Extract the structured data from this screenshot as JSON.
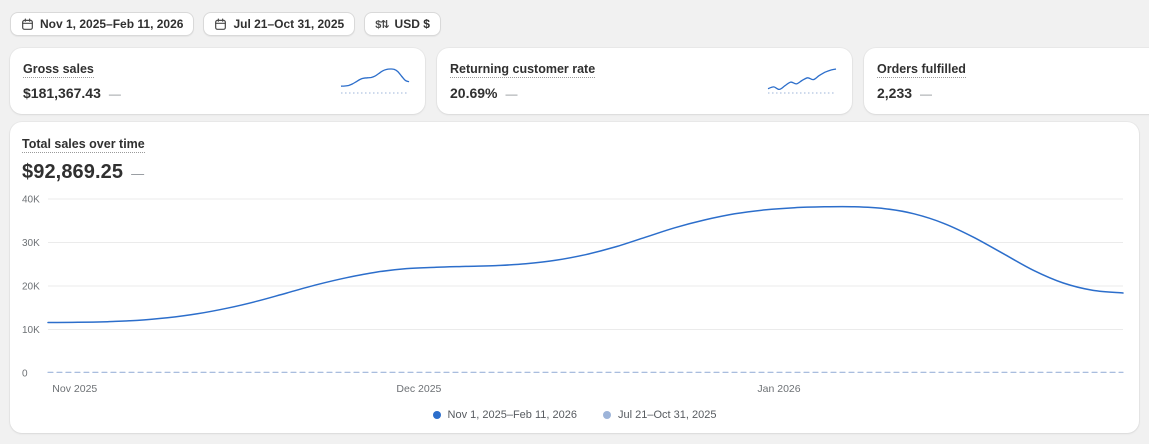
{
  "toolbar": {
    "date_range": "Nov 1, 2025–Feb 11, 2026",
    "compare_range": "Jul 21–Oct 31, 2025",
    "currency": "USD $"
  },
  "colors": {
    "primary": "#2c6ecb",
    "comparison": "#9db4d9",
    "grid": "#ebebeb",
    "axis_text": "#6d7175"
  },
  "metrics": [
    {
      "title": "Gross sales",
      "value": "$181,367.43",
      "delta": "—",
      "spark": [
        11.6,
        11.8,
        12.7,
        14.9,
        18.4,
        21.9,
        24,
        24.5,
        25.1,
        27.2,
        31.2,
        35.2,
        37.5,
        38.2,
        37.8,
        34.4,
        27.4,
        20.7,
        18.4
      ],
      "spark_compare": [
        1,
        1,
        1,
        1,
        1,
        1,
        1,
        1,
        1,
        1
      ]
    },
    {
      "title": "Returning customer rate",
      "value": "20.69%",
      "delta": "—",
      "spark": [
        14.2,
        14.8,
        14.0,
        15.2,
        16.4,
        15.8,
        16.9,
        17.8,
        17.2,
        18.5,
        19.6,
        20.3,
        20.7
      ],
      "spark_compare": [
        12.8,
        12.8,
        12.8,
        12.8,
        12.8,
        12.8,
        12.8,
        12.8
      ]
    },
    {
      "title": "Orders fulfilled",
      "value": "2,233",
      "delta": "—"
    }
  ],
  "main_chart": {
    "title": "Total sales over time",
    "value": "$92,869.25",
    "delta": "—"
  },
  "chart_data": {
    "type": "line",
    "title": "Total sales over time",
    "ylim": [
      0,
      40000
    ],
    "ytick_labels": [
      "0",
      "10K",
      "20K",
      "30K",
      "40K"
    ],
    "xticks": [
      {
        "label": "Nov 2025",
        "pos": 0.004,
        "anchor": "start"
      },
      {
        "label": "Dec 2025",
        "pos": 0.345,
        "anchor": "middle"
      },
      {
        "label": "Jan 2026",
        "pos": 0.68,
        "anchor": "middle"
      }
    ],
    "grid": true,
    "legend_position": "bottom-center",
    "series": [
      {
        "name": "Nov 1, 2025–Feb 11, 2026",
        "color": "#2c6ecb",
        "style": "solid",
        "values": [
          11600,
          11650,
          11800,
          12100,
          12700,
          13600,
          14900,
          16500,
          18400,
          20300,
          21900,
          23200,
          24000,
          24300,
          24500,
          24700,
          25100,
          25900,
          27200,
          29000,
          31200,
          33400,
          35200,
          36600,
          37500,
          38000,
          38200,
          38200,
          37800,
          36600,
          34400,
          31200,
          27400,
          23600,
          20700,
          19000,
          18400
        ]
      },
      {
        "name": "Jul 21–Oct 31, 2025",
        "color": "#9db4d9",
        "style": "dashed",
        "values": [
          150,
          150,
          150,
          150,
          150,
          150,
          150,
          150,
          150,
          150
        ]
      }
    ]
  }
}
